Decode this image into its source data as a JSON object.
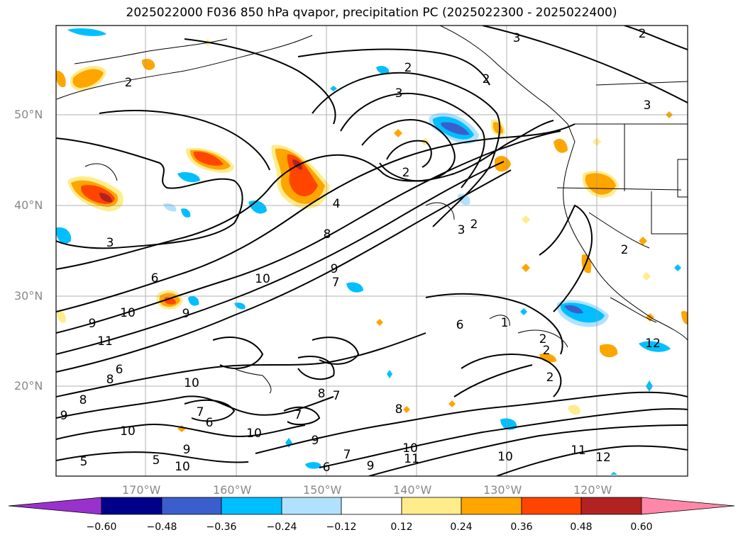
{
  "title": "2025022000 F036 850 hPa qvapor, precipitation PC (2025022300 - 2025022400)",
  "lat_labels": [
    "50°N",
    "40°N",
    "30°N",
    "20°N"
  ],
  "lon_labels": [
    "170°W",
    "160°W",
    "150°W",
    "140°W",
    "130°W",
    "120°W"
  ],
  "colorbar": {
    "ticks": [
      "−0.60",
      "−0.48",
      "−0.36",
      "−0.24",
      "−0.12",
      "0.12",
      "0.24",
      "0.36",
      "0.48",
      "0.60"
    ],
    "colors": [
      "#9932cc",
      "#00008b",
      "#3a5fcd",
      "#00bfff",
      "#b0e2ff",
      "#ffffff",
      "#ffec8b",
      "#ffa500",
      "#ff4500",
      "#b22222",
      "#ff88aa"
    ]
  },
  "contour_labels": [
    "2",
    "2",
    "3",
    "3",
    "2",
    "3",
    "2",
    "4",
    "8",
    "6",
    "9",
    "10",
    "9",
    "7",
    "10",
    "11",
    "9",
    "8",
    "6",
    "8",
    "9",
    "10",
    "7",
    "6",
    "10",
    "10",
    "7",
    "8",
    "7",
    "9",
    "7",
    "8",
    "10",
    "11",
    "12",
    "11",
    "10",
    "9",
    "6",
    "5",
    "5",
    "9",
    "1",
    "2",
    "2",
    "2",
    "12",
    "3",
    "3",
    "2",
    "2",
    "6",
    "2",
    "10"
  ]
}
